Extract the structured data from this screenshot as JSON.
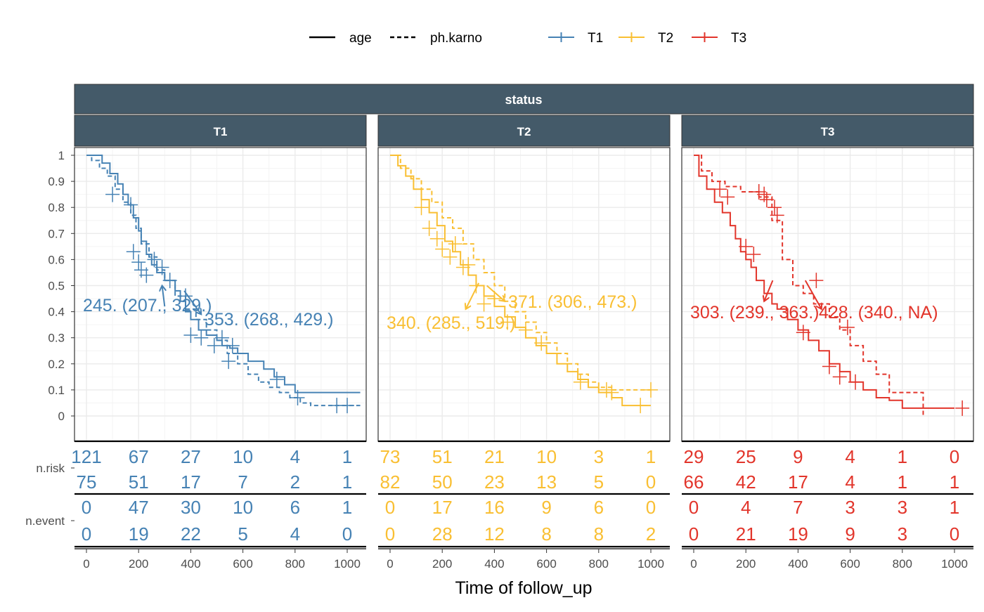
{
  "chart_data": {
    "type": "line",
    "subtype": "kaplan-meier survival curves with risk table",
    "legend": {
      "position": "top",
      "linetype": {
        "items": [
          {
            "label": "age",
            "style": "solid"
          },
          {
            "label": "ph.karno",
            "style": "dashed"
          }
        ]
      },
      "color": {
        "items": [
          {
            "label": "T1",
            "color": "#4682b4"
          },
          {
            "label": "T2",
            "color": "#f9bf33"
          },
          {
            "label": "T3",
            "color": "#e2352b"
          }
        ]
      }
    },
    "strip": {
      "outer": "status",
      "panels": [
        "T1",
        "T2",
        "T3"
      ]
    },
    "xlabel": "Time of follow_up",
    "xlim": [
      -50,
      1050
    ],
    "xticks": [
      0,
      200,
      400,
      600,
      800,
      1000
    ],
    "ylim": [
      0,
      1
    ],
    "yticks": [
      0,
      0.1,
      0.2,
      0.3,
      0.4,
      0.5,
      0.6,
      0.7,
      0.8,
      0.9,
      1
    ],
    "yticklabels": [
      "0",
      "0.1",
      "0.2",
      "0.3",
      "0.4",
      "0.5",
      "0.6",
      "0.7",
      "0.8",
      "0.9",
      "1"
    ],
    "grid": true,
    "table_times": [
      0,
      200,
      400,
      600,
      800,
      1000
    ],
    "table_row_labels": [
      "n.risk",
      "n.event"
    ],
    "panels": [
      {
        "name": "T1",
        "color": "#4682b4",
        "series": [
          {
            "name": "age",
            "style": "solid",
            "x": [
              0,
              60,
              90,
              120,
              140,
              160,
              180,
              200,
              210,
              230,
              250,
              270,
              300,
              340,
              360,
              380,
              400,
              430,
              460,
              500,
              520,
              550,
              580,
              620,
              680,
              720,
              760,
              800,
              1050
            ],
            "y": [
              1,
              0.97,
              0.93,
              0.89,
              0.85,
              0.81,
              0.76,
              0.71,
              0.67,
              0.62,
              0.58,
              0.55,
              0.52,
              0.48,
              0.44,
              0.4,
              0.37,
              0.33,
              0.31,
              0.29,
              0.27,
              0.26,
              0.24,
              0.21,
              0.18,
              0.15,
              0.12,
              0.09,
              0.09
            ]
          },
          {
            "name": "ph.karno",
            "style": "dashed",
            "x": [
              0,
              20,
              50,
              80,
              110,
              140,
              170,
              190,
              210,
              240,
              270,
              300,
              340,
              380,
              420,
              460,
              500,
              540,
              580,
              620,
              660,
              700,
              740,
              780,
              820,
              860,
              900,
              960,
              1050
            ],
            "y": [
              1,
              0.98,
              0.95,
              0.92,
              0.87,
              0.82,
              0.77,
              0.72,
              0.66,
              0.61,
              0.56,
              0.52,
              0.46,
              0.41,
              0.37,
              0.33,
              0.29,
              0.24,
              0.2,
              0.16,
              0.13,
              0.11,
              0.09,
              0.07,
              0.05,
              0.04,
              0.04,
              0.04,
              0.04
            ]
          }
        ],
        "censor_marks": [
          {
            "x": 100,
            "y": 0.85
          },
          {
            "x": 170,
            "y": 0.81
          },
          {
            "x": 180,
            "y": 0.63
          },
          {
            "x": 200,
            "y": 0.59
          },
          {
            "x": 210,
            "y": 0.56
          },
          {
            "x": 230,
            "y": 0.54
          },
          {
            "x": 260,
            "y": 0.6
          },
          {
            "x": 290,
            "y": 0.57
          },
          {
            "x": 320,
            "y": 0.52
          },
          {
            "x": 380,
            "y": 0.46
          },
          {
            "x": 400,
            "y": 0.31
          },
          {
            "x": 440,
            "y": 0.3
          },
          {
            "x": 490,
            "y": 0.27
          },
          {
            "x": 520,
            "y": 0.3
          },
          {
            "x": 545,
            "y": 0.21
          },
          {
            "x": 560,
            "y": 0.27
          },
          {
            "x": 730,
            "y": 0.14
          },
          {
            "x": 810,
            "y": 0.07
          },
          {
            "x": 960,
            "y": 0.04
          },
          {
            "x": 1000,
            "y": 0.04
          }
        ],
        "medians": [
          {
            "label": "245. (207., 329.)",
            "arrow_from": {
              "x": 300,
              "y": 0.42
            },
            "arrow_to": {
              "x": 290,
              "y": 0.5
            }
          },
          {
            "label": "353. (268., 429.)",
            "arrow_from": {
              "x": 375,
              "y": 0.48
            },
            "arrow_to": {
              "x": 440,
              "y": 0.39
            }
          }
        ],
        "n_risk": [
          [
            121,
            67,
            27,
            10,
            4,
            1
          ],
          [
            75,
            51,
            17,
            7,
            2,
            1
          ]
        ],
        "n_event": [
          [
            0,
            47,
            30,
            10,
            6,
            1
          ],
          [
            0,
            19,
            22,
            5,
            4,
            0
          ]
        ]
      },
      {
        "name": "T2",
        "color": "#f9bf33",
        "series": [
          {
            "name": "age",
            "style": "solid",
            "x": [
              0,
              30,
              60,
              90,
              120,
              150,
              180,
              210,
              240,
              270,
              300,
              330,
              360,
              400,
              440,
              480,
              520,
              560,
              600,
              640,
              680,
              720,
              760,
              800,
              850,
              890,
              930,
              1000
            ],
            "y": [
              1,
              0.96,
              0.92,
              0.87,
              0.83,
              0.78,
              0.73,
              0.67,
              0.63,
              0.58,
              0.54,
              0.5,
              0.46,
              0.42,
              0.38,
              0.34,
              0.3,
              0.27,
              0.24,
              0.2,
              0.17,
              0.14,
              0.11,
              0.09,
              0.07,
              0.04,
              0.04,
              0.04
            ]
          },
          {
            "name": "ph.karno",
            "style": "dashed",
            "x": [
              0,
              40,
              80,
              120,
              160,
              200,
              240,
              280,
              320,
              360,
              400,
              440,
              480,
              520,
              560,
              600,
              640,
              680,
              720,
              760,
              800,
              850,
              900,
              950,
              1000
            ],
            "y": [
              1,
              0.95,
              0.91,
              0.87,
              0.82,
              0.76,
              0.72,
              0.66,
              0.6,
              0.55,
              0.5,
              0.44,
              0.4,
              0.36,
              0.32,
              0.28,
              0.24,
              0.2,
              0.16,
              0.13,
              0.11,
              0.1,
              0.1,
              0.1,
              0.1
            ]
          }
        ],
        "censor_marks": [
          {
            "x": 120,
            "y": 0.8
          },
          {
            "x": 150,
            "y": 0.72
          },
          {
            "x": 180,
            "y": 0.68
          },
          {
            "x": 200,
            "y": 0.64
          },
          {
            "x": 230,
            "y": 0.61
          },
          {
            "x": 250,
            "y": 0.66
          },
          {
            "x": 280,
            "y": 0.57
          },
          {
            "x": 300,
            "y": 0.58
          },
          {
            "x": 330,
            "y": 0.5
          },
          {
            "x": 360,
            "y": 0.43
          },
          {
            "x": 400,
            "y": 0.45
          },
          {
            "x": 450,
            "y": 0.36
          },
          {
            "x": 520,
            "y": 0.33
          },
          {
            "x": 580,
            "y": 0.28
          },
          {
            "x": 730,
            "y": 0.13
          },
          {
            "x": 830,
            "y": 0.1
          },
          {
            "x": 850,
            "y": 0.09
          },
          {
            "x": 960,
            "y": 0.04
          },
          {
            "x": 1000,
            "y": 0.1
          }
        ],
        "medians": [
          {
            "label": "340. (285., 519.)",
            "arrow_from": {
              "x": 340,
              "y": 0.51
            },
            "arrow_to": {
              "x": 290,
              "y": 0.41
            }
          },
          {
            "label": "371. (306., 473.)",
            "arrow_from": {
              "x": 371,
              "y": 0.5
            },
            "arrow_to": {
              "x": 440,
              "y": 0.44
            }
          }
        ],
        "n_risk": [
          [
            73,
            51,
            21,
            10,
            3,
            1
          ],
          [
            82,
            50,
            23,
            13,
            5,
            0
          ]
        ],
        "n_event": [
          [
            0,
            17,
            16,
            9,
            6,
            0
          ],
          [
            0,
            28,
            12,
            8,
            8,
            2
          ]
        ]
      },
      {
        "name": "T3",
        "color": "#e2352b",
        "series": [
          {
            "name": "age",
            "style": "solid",
            "x": [
              0,
              20,
              50,
              80,
              110,
              140,
              160,
              180,
              200,
              220,
              240,
              270,
              300,
              320,
              360,
              400,
              440,
              480,
              520,
              560,
              600,
              650,
              700,
              750,
              800,
              1000
            ],
            "y": [
              1,
              0.92,
              0.87,
              0.82,
              0.78,
              0.73,
              0.68,
              0.63,
              0.6,
              0.57,
              0.52,
              0.47,
              0.43,
              0.41,
              0.37,
              0.33,
              0.29,
              0.25,
              0.2,
              0.17,
              0.13,
              0.1,
              0.07,
              0.06,
              0.03,
              0.03
            ]
          },
          {
            "name": "ph.karno",
            "style": "dashed",
            "x": [
              0,
              30,
              70,
              120,
              180,
              250,
              300,
              340,
              380,
              420,
              460,
              520,
              560,
              600,
              650,
              700,
              750,
              800,
              880
            ],
            "y": [
              1,
              0.94,
              0.9,
              0.88,
              0.86,
              0.84,
              0.75,
              0.6,
              0.5,
              0.47,
              0.43,
              0.38,
              0.33,
              0.27,
              0.21,
              0.16,
              0.09,
              0.09,
              0.0
            ]
          }
        ],
        "censor_marks": [
          {
            "x": 100,
            "y": 0.87
          },
          {
            "x": 130,
            "y": 0.84
          },
          {
            "x": 200,
            "y": 0.65
          },
          {
            "x": 230,
            "y": 0.62
          },
          {
            "x": 250,
            "y": 0.86
          },
          {
            "x": 270,
            "y": 0.85
          },
          {
            "x": 280,
            "y": 0.83
          },
          {
            "x": 310,
            "y": 0.8
          },
          {
            "x": 320,
            "y": 0.77
          },
          {
            "x": 420,
            "y": 0.32
          },
          {
            "x": 470,
            "y": 0.52
          },
          {
            "x": 520,
            "y": 0.19
          },
          {
            "x": 560,
            "y": 0.15
          },
          {
            "x": 590,
            "y": 0.34
          },
          {
            "x": 620,
            "y": 0.13
          },
          {
            "x": 1030,
            "y": 0.03
          }
        ],
        "medians": [
          {
            "label": "303. (239., 363.)",
            "arrow_from": {
              "x": 303,
              "y": 0.52
            },
            "arrow_to": {
              "x": 270,
              "y": 0.44
            }
          },
          {
            "label": "428. (340., NA)",
            "arrow_from": {
              "x": 428,
              "y": 0.52
            },
            "arrow_to": {
              "x": 490,
              "y": 0.41
            }
          }
        ],
        "n_risk": [
          [
            29,
            25,
            9,
            4,
            1,
            0
          ],
          [
            66,
            42,
            17,
            4,
            1,
            1
          ]
        ],
        "n_event": [
          [
            0,
            4,
            7,
            3,
            3,
            1
          ],
          [
            0,
            21,
            19,
            9,
            3,
            0
          ]
        ]
      }
    ]
  }
}
